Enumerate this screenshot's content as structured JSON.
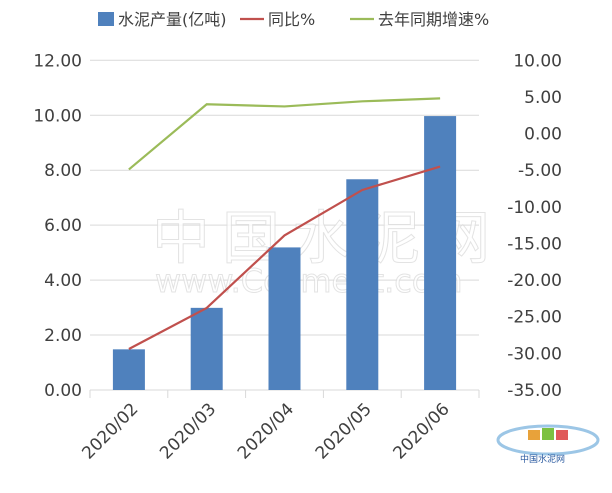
{
  "chart_data": {
    "type": "bar+line",
    "categories": [
      "2020/02",
      "2020/03",
      "2020/04",
      "2020/05",
      "2020/06"
    ],
    "series": [
      {
        "name": "水泥产量(亿吨)",
        "type": "bar",
        "axis": "left",
        "color": "#4F81BD",
        "values": [
          1.48,
          2.99,
          5.19,
          7.67,
          9.97
        ]
      },
      {
        "name": "同比%",
        "type": "line",
        "axis": "right",
        "color": "#C0504D",
        "values": [
          -29.4,
          -23.8,
          -13.9,
          -7.7,
          -4.5
        ]
      },
      {
        "name": "去年同期增速%",
        "type": "line",
        "axis": "right",
        "color": "#9BBB59",
        "values": [
          -4.9,
          4.0,
          3.7,
          4.4,
          4.8
        ]
      }
    ],
    "y_left": {
      "range": [
        0,
        12
      ],
      "ticks": [
        "0.00",
        "2.00",
        "4.00",
        "6.00",
        "8.00",
        "10.00",
        "12.00"
      ]
    },
    "y_right": {
      "range": [
        -35,
        10
      ],
      "ticks": [
        "-35.00",
        "-30.00",
        "-25.00",
        "-20.00",
        "-15.00",
        "-10.00",
        "-5.00",
        "0.00",
        "5.00",
        "10.00"
      ]
    },
    "grid": true,
    "legend": "top"
  },
  "watermark": {
    "line1": "中国水泥网",
    "line2": "www.Ccement.com",
    "logo": "中国水泥网 Ccement.com"
  }
}
